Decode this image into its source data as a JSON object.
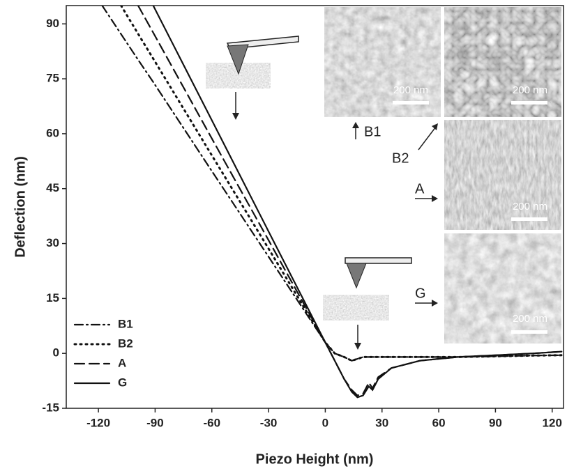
{
  "chart_data": {
    "type": "line",
    "x_label": "Piezo Height (nm)",
    "y_label": "Deflection (nm)",
    "x": [
      -118,
      -108,
      -99,
      -91,
      -60,
      -30,
      -10,
      0,
      5,
      10,
      14,
      17,
      20,
      23,
      25,
      28,
      35,
      50,
      70,
      90,
      110,
      125
    ],
    "series": [
      {
        "name": "B1",
        "color": "#111111",
        "dash": "dash-dot",
        "values": [
          95,
          87.2,
          80.2,
          74.1,
          49.8,
          26.4,
          10.8,
          3,
          0,
          -1,
          -2,
          -1.5,
          -1,
          -1,
          -1,
          -1,
          -1,
          -1,
          -1,
          -0.8,
          -0.6,
          -0.5
        ]
      },
      {
        "name": "B2",
        "color": "#111111",
        "dash": "dot",
        "values": [
          null,
          95,
          87.3,
          80.5,
          54.1,
          28.6,
          11.5,
          3,
          0,
          -1,
          -2,
          -1.5,
          -1,
          -1,
          -1,
          -1,
          -1,
          -1,
          -1,
          -0.8,
          -0.6,
          -0.5
        ]
      },
      {
        "name": "A",
        "color": "#111111",
        "dash": "dash",
        "values": [
          null,
          null,
          95,
          87.6,
          58.7,
          30.9,
          12.3,
          3,
          -2,
          -7,
          -10,
          -11.5,
          -11,
          -8,
          -9.5,
          -6.5,
          -4,
          -2,
          -1,
          -0.5,
          0,
          0.5
        ]
      },
      {
        "name": "G",
        "color": "#111111",
        "dash": "solid",
        "values": [
          null,
          null,
          null,
          95,
          63.7,
          33.3,
          13.1,
          3,
          -2,
          -7,
          -10.5,
          -12,
          -11.5,
          -9,
          -10,
          -7,
          -4,
          -2,
          -1,
          -0.5,
          0,
          0.5
        ]
      }
    ],
    "xlim": [
      -137,
      126
    ],
    "ylim": [
      -15,
      95
    ],
    "xticks": [
      -120,
      -90,
      -60,
      -30,
      0,
      30,
      60,
      90,
      120
    ],
    "yticks": [
      -15,
      0,
      15,
      30,
      45,
      60,
      75,
      90
    ],
    "legend": "lower left",
    "annotations": [
      "B1",
      "B2",
      "A",
      "G",
      "200 nm",
      "200 nm",
      "200 nm",
      "200 nm"
    ]
  }
}
